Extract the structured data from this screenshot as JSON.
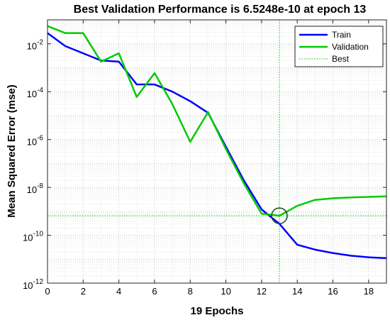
{
  "chart_data": {
    "type": "line",
    "title": "Best Validation Performance is 6.5248e-10 at epoch 13",
    "xlabel": "19 Epochs",
    "ylabel": "Mean Squared Error  (mse)",
    "xlim": [
      0,
      19
    ],
    "ylim": [
      1e-12,
      0.1
    ],
    "yscale": "log",
    "grid": true,
    "legend_position": "top-right",
    "x_ticks": [
      0,
      2,
      4,
      6,
      8,
      10,
      12,
      14,
      16,
      18
    ],
    "y_ticks": [
      {
        "value": 0.01,
        "base": "10",
        "exp": "-2"
      },
      {
        "value": 0.0001,
        "base": "10",
        "exp": "-4"
      },
      {
        "value": 1e-06,
        "base": "10",
        "exp": "-6"
      },
      {
        "value": 1e-08,
        "base": "10",
        "exp": "-8"
      },
      {
        "value": 1e-10,
        "base": "10",
        "exp": "-10"
      },
      {
        "value": 1e-12,
        "base": "10",
        "exp": "-12"
      }
    ],
    "x": [
      0,
      1,
      2,
      3,
      4,
      5,
      6,
      7,
      8,
      9,
      10,
      11,
      12,
      13,
      14,
      15,
      16,
      17,
      18,
      19
    ],
    "series": [
      {
        "name": "Train",
        "color": "#0000ff",
        "values": [
          0.028,
          0.008,
          0.004,
          0.002,
          0.0018,
          0.0002,
          0.0002,
          0.0001,
          4e-05,
          1.3e-05,
          5e-07,
          2e-08,
          1.2e-09,
          3e-10,
          4e-11,
          2.5e-11,
          1.8e-11,
          1.4e-11,
          1.2e-11,
          1.1e-11
        ]
      },
      {
        "name": "Validation",
        "color": "#00cc00",
        "values": [
          0.055,
          0.028,
          0.028,
          0.0018,
          0.004,
          6e-05,
          0.0006,
          3e-05,
          8e-07,
          1.4e-05,
          4e-07,
          1.5e-08,
          8e-10,
          6.5e-10,
          1.7e-09,
          3e-09,
          3.5e-09,
          3.8e-09,
          4e-09,
          4.2e-09
        ]
      }
    ],
    "best": {
      "name": "Best",
      "epoch": 13,
      "value": 6.5248e-10,
      "color": "#00cc00"
    }
  }
}
